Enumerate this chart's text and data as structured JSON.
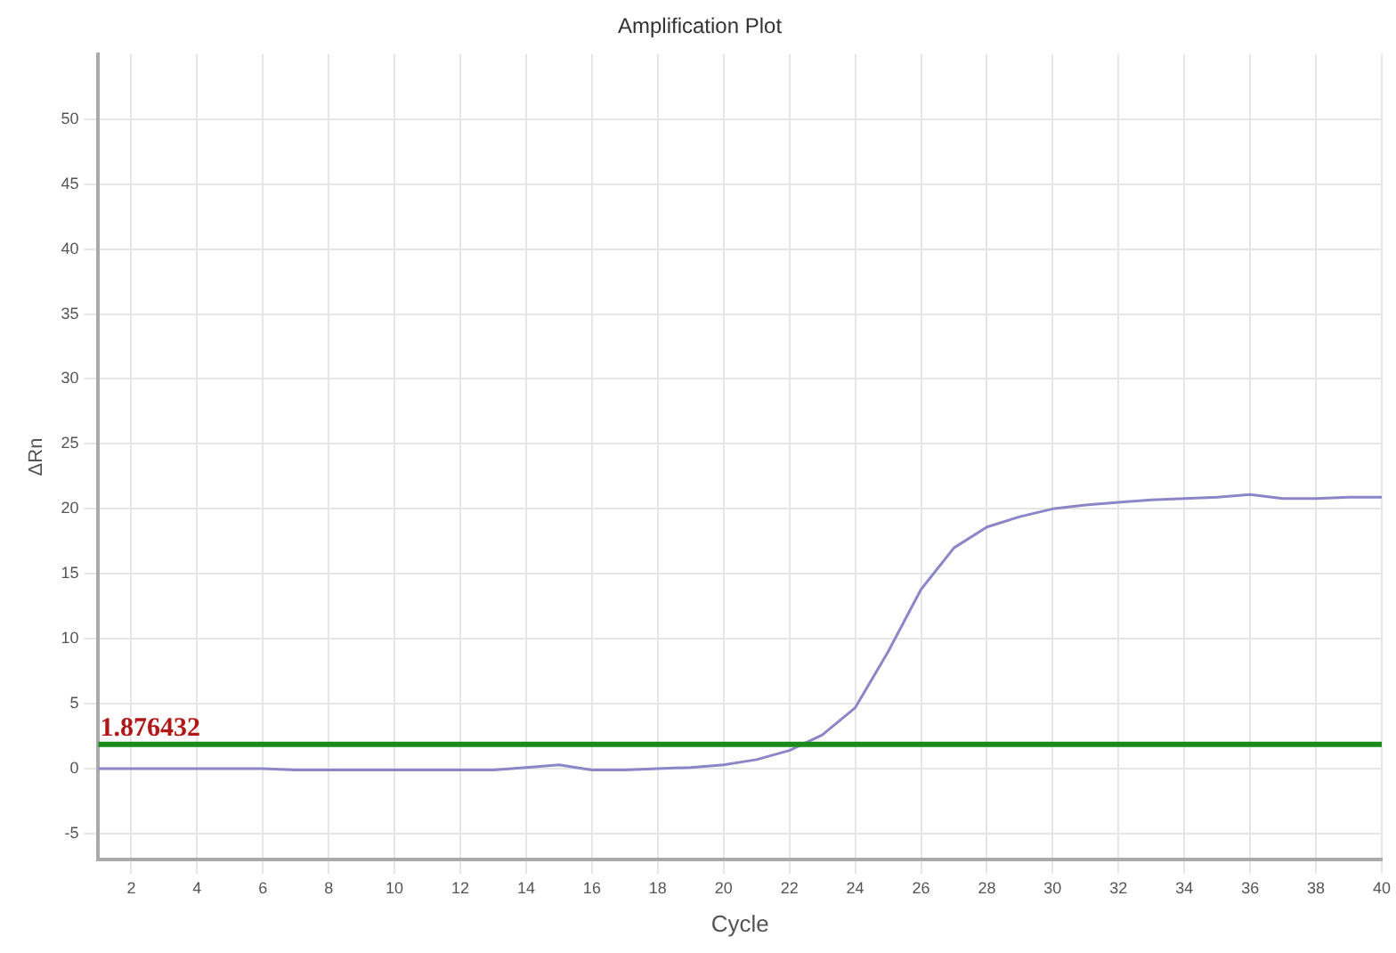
{
  "chart_data": {
    "type": "line",
    "title": "Amplification Plot",
    "xlabel": "Cycle",
    "ylabel": "ΔRn",
    "x": [
      1,
      2,
      3,
      4,
      5,
      6,
      7,
      8,
      9,
      10,
      11,
      12,
      13,
      14,
      15,
      16,
      17,
      18,
      19,
      20,
      21,
      22,
      23,
      24,
      25,
      26,
      27,
      28,
      29,
      30,
      31,
      32,
      33,
      34,
      35,
      36,
      37,
      38,
      39,
      40
    ],
    "series": [
      {
        "color": "#8a86c8",
        "values": [
          0,
          0,
          0,
          0,
          0,
          0,
          -0.1,
          -0.1,
          -0.1,
          -0.1,
          -0.1,
          -0.1,
          -0.1,
          0.1,
          0.3,
          -0.1,
          -0.1,
          0,
          0.1,
          0.3,
          0.7,
          1.4,
          2.6,
          4.7,
          9,
          13.8,
          17,
          18.6,
          19.4,
          20,
          20.3,
          20.5,
          20.7,
          20.8,
          20.9,
          21.1,
          20.8,
          20.8,
          20.9,
          20.9
        ]
      }
    ],
    "xlim": [
      1,
      40
    ],
    "xticks": [
      2,
      4,
      6,
      8,
      10,
      12,
      14,
      16,
      18,
      20,
      22,
      24,
      26,
      28,
      30,
      32,
      34,
      36,
      38,
      40
    ],
    "ylim": [
      -7,
      55
    ],
    "yticks": [
      -5,
      0,
      5,
      10,
      15,
      20,
      25,
      30,
      35,
      40,
      45,
      50
    ],
    "ref_lines": [
      {
        "axis": "y",
        "value": 1.876432,
        "label": "1.876432",
        "color": "#1a8a1a"
      }
    ],
    "grid": true,
    "legend": false,
    "marker": "none",
    "line_style": "solid"
  }
}
